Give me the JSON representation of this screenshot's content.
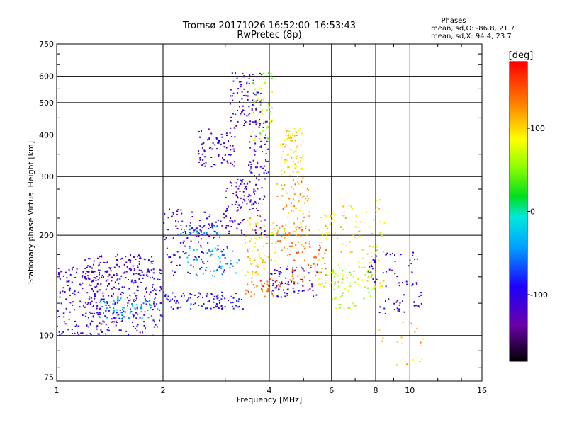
{
  "chart_data": {
    "type": "scatter",
    "title": "Tromsø 20171026 16:52:00–16:53:43",
    "subtitle": "RwPretec (8p)",
    "stats": {
      "title": "Phases",
      "line_o": "mean, sd,O: -86.8, 21.7",
      "line_x": "mean, sd,X:  94.4, 23.7"
    },
    "xlabel": "Frequency [MHz]",
    "ylabel": "Stationary phase Virtual Height [km]",
    "x_scale": "log",
    "y_scale": "log",
    "xlim": [
      1,
      16
    ],
    "ylim": [
      73,
      750
    ],
    "x_ticks": [
      1,
      2,
      4,
      6,
      8,
      10,
      16
    ],
    "x_tick_labels": [
      "1",
      "2",
      "4",
      "6",
      "8",
      "10",
      "16"
    ],
    "y_ticks": [
      75,
      100,
      200,
      300,
      400,
      500,
      600,
      750
    ],
    "y_tick_labels": [
      "75",
      "100",
      "200",
      "300",
      "400",
      "500",
      "600",
      "750"
    ],
    "grid": true,
    "colorbar": {
      "label": "[deg]",
      "min": -180,
      "max": 180,
      "ticks": [
        100,
        0,
        -100
      ],
      "tick_labels": [
        "100",
        "0",
        "-100"
      ]
    },
    "clusters": [
      {
        "f": [
          1.0,
          2.0
        ],
        "h": [
          100,
          160
        ],
        "phase": -110,
        "n": 360
      },
      {
        "f": [
          1.2,
          1.9
        ],
        "h": [
          145,
          175
        ],
        "phase": -120,
        "n": 110
      },
      {
        "f": [
          1.3,
          2.0
        ],
        "h": [
          112,
          130
        ],
        "phase": -40,
        "n": 70
      },
      {
        "f": [
          2.0,
          3.4
        ],
        "h": [
          120,
          135
        ],
        "phase": -90,
        "n": 100
      },
      {
        "f": [
          2.0,
          3.0
        ],
        "h": [
          150,
          240
        ],
        "phase": -115,
        "n": 110
      },
      {
        "f": [
          2.2,
          2.9
        ],
        "h": [
          200,
          215
        ],
        "phase": -70,
        "n": 50
      },
      {
        "f": [
          2.3,
          3.3
        ],
        "h": [
          150,
          185
        ],
        "phase": -40,
        "n": 60
      },
      {
        "f": [
          2.5,
          3.2
        ],
        "h": [
          320,
          420
        ],
        "phase": -115,
        "n": 80
      },
      {
        "f": [
          3.0,
          3.9
        ],
        "h": [
          200,
          300
        ],
        "phase": -120,
        "n": 120
      },
      {
        "f": [
          3.1,
          3.8
        ],
        "h": [
          420,
          620
        ],
        "phase": -110,
        "n": 90
      },
      {
        "f": [
          3.5,
          4.0
        ],
        "h": [
          300,
          440
        ],
        "phase": -110,
        "n": 60
      },
      {
        "f": [
          3.6,
          4.1
        ],
        "h": [
          380,
          620
        ],
        "phase": 60,
        "n": 60
      },
      {
        "f": [
          3.4,
          4.2
        ],
        "h": [
          150,
          230
        ],
        "phase": 100,
        "n": 80
      },
      {
        "f": [
          3.4,
          4.3
        ],
        "h": [
          130,
          150
        ],
        "phase": 140,
        "n": 40
      },
      {
        "f": [
          4.0,
          5.5
        ],
        "h": [
          130,
          160
        ],
        "phase": -110,
        "n": 70
      },
      {
        "f": [
          4.2,
          5.2
        ],
        "h": [
          180,
          300
        ],
        "phase": 120,
        "n": 100
      },
      {
        "f": [
          4.3,
          5.0
        ],
        "h": [
          300,
          420
        ],
        "phase": 100,
        "n": 80
      },
      {
        "f": [
          4.5,
          5.8
        ],
        "h": [
          140,
          190
        ],
        "phase": 140,
        "n": 60
      },
      {
        "f": [
          5.5,
          8.5
        ],
        "h": [
          140,
          260
        ],
        "phase": 90,
        "n": 120
      },
      {
        "f": [
          6.0,
          8.0
        ],
        "h": [
          120,
          160
        ],
        "phase": 60,
        "n": 60
      },
      {
        "f": [
          7.5,
          10.5
        ],
        "h": [
          140,
          180
        ],
        "phase": -110,
        "n": 50
      },
      {
        "f": [
          8.0,
          10.8
        ],
        "h": [
          115,
          135
        ],
        "phase": -110,
        "n": 30
      },
      {
        "f": [
          8.2,
          11.0
        ],
        "h": [
          80,
          110
        ],
        "phase": 100,
        "n": 20
      }
    ]
  }
}
